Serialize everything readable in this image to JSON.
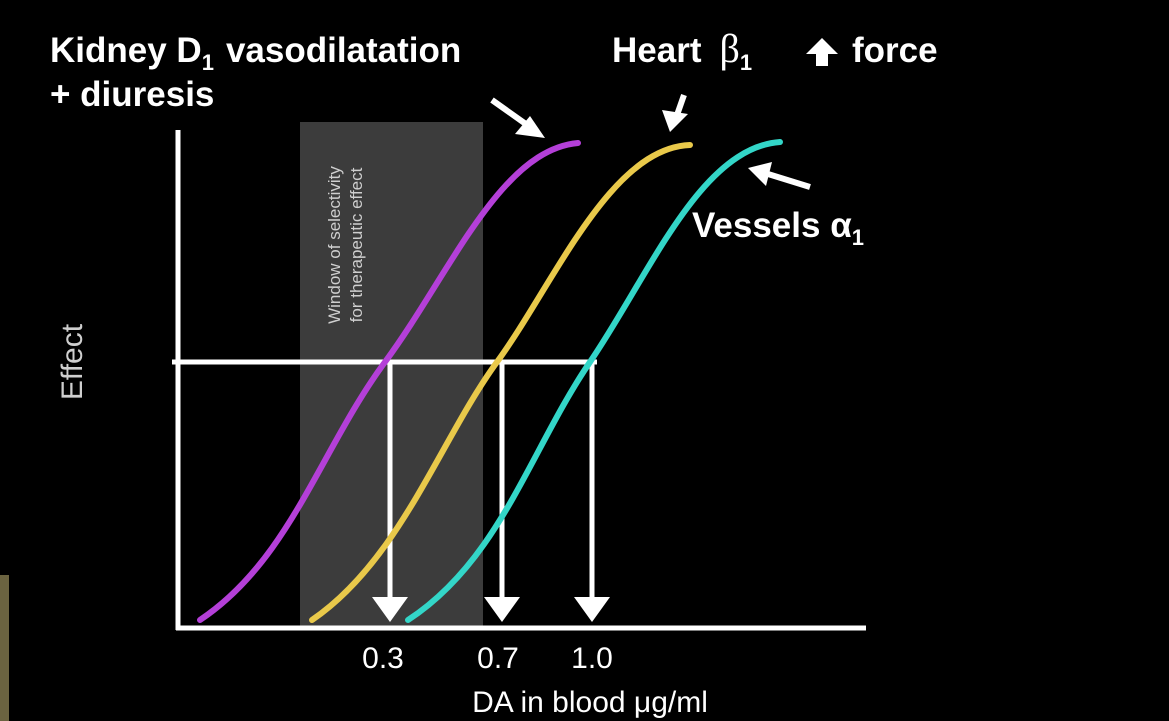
{
  "labels": {
    "kidney": {
      "name": "Kidney D",
      "subscript": "1",
      "effect": "vasodilatation",
      "line2": "+ diuresis"
    },
    "heart": {
      "name": "Heart",
      "receptor": "β",
      "subscript": "1",
      "effect": "force"
    },
    "vessels": {
      "name": "Vessels α",
      "subscript": "1"
    }
  },
  "window": {
    "line1": "Window of selectivity",
    "line2": "for therapeutic effect"
  },
  "axes": {
    "y_label": "Effect",
    "x_label": "DA in blood μg/ml",
    "x_ticks": [
      "0.3",
      "0.7",
      "1.0"
    ]
  }
}
